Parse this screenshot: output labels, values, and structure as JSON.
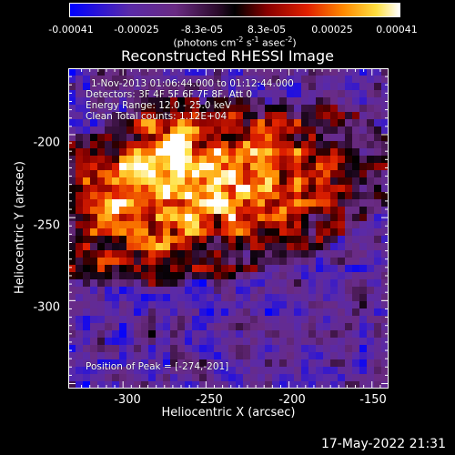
{
  "colorbar": {
    "tick_labels": [
      "-0.00041",
      "-0.00025",
      "-8.3e-05",
      "8.3e-05",
      "0.00025",
      "0.00041"
    ],
    "units_prefix": "(photons cm",
    "units_exp1": "-2",
    "units_mid": " s",
    "units_exp2": "-1",
    "units_mid2": " asec",
    "units_exp3": "-2",
    "units_suffix": ")",
    "colormap": "rainbow-to-hot",
    "range": [
      -0.00041,
      0.00041
    ]
  },
  "chart_data": {
    "type": "heatmap",
    "title": "Reconstructed RHESSI Image",
    "xlabel": "Heliocentric X (arcsec)",
    "ylabel": "Heliocentric Y (arcsec)",
    "xlim": [
      -333,
      -140
    ],
    "ylim": [
      -353,
      -160
    ],
    "x_ticks": [
      -300,
      -250,
      -200,
      -150
    ],
    "y_ticks": [
      -200,
      -250,
      -300
    ],
    "annotations": {
      "time_range": "1-Nov-2013 01:06:44.000 to 01:12:44.000",
      "detectors": "Detectors: 3F 4F 5F 6F 7F 8F, Att 0",
      "energy_range": "Energy Range: 12.0 - 25.0 keV",
      "clean": "Clean    Total counts: 1.12E+04",
      "peak": "Position of Peak = [-274,-201]"
    },
    "peak_position": [
      -274,
      -201
    ],
    "grid": false
  },
  "footer": {
    "timestamp": "17-May-2022 21:31"
  }
}
